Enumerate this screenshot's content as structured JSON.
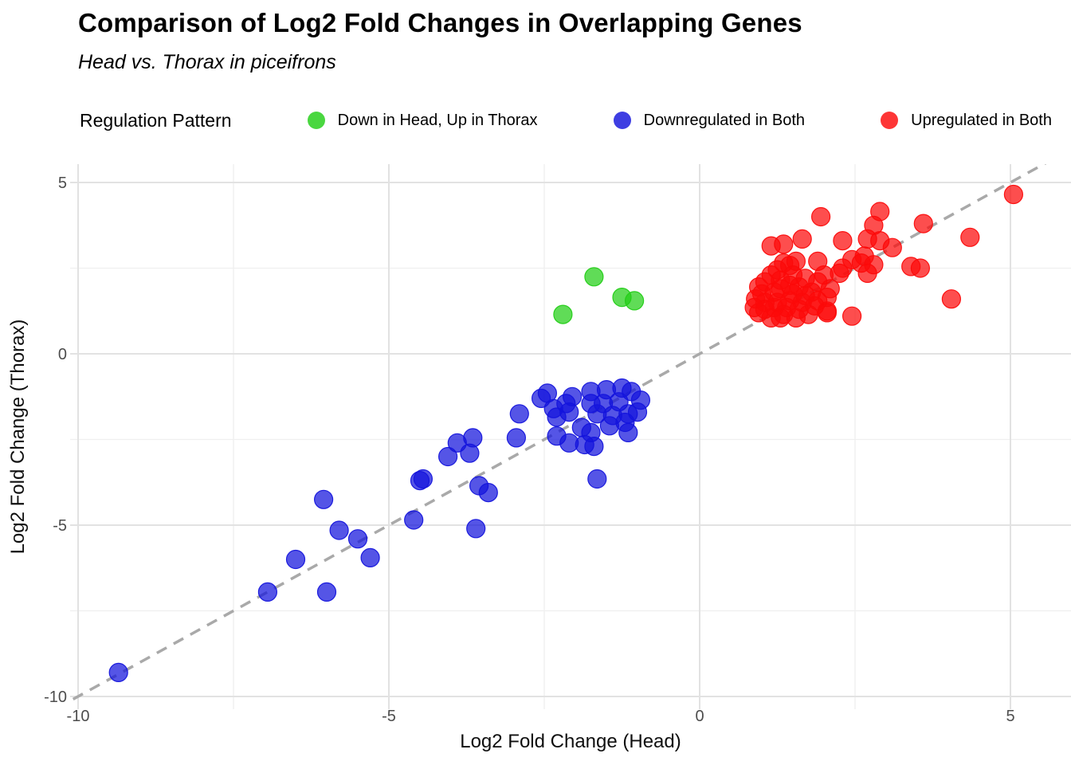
{
  "title": "Comparison of Log2 Fold Changes in Overlapping Genes",
  "subtitle": "Head vs. Thorax in piceifrons",
  "legend": {
    "title": "Regulation Pattern",
    "items": [
      {
        "label": "Down in Head, Up in Thorax",
        "color": "#22CE16"
      },
      {
        "label": "Downregulated in Both",
        "color": "#1414DC"
      },
      {
        "label": "Upregulated in Both",
        "color": "#FC0A0A"
      }
    ]
  },
  "chart_data": {
    "type": "scatter",
    "title": "Comparison of Log2 Fold Changes in Overlapping Genes",
    "subtitle": "Head vs. Thorax in piceifrons",
    "xlabel": "Log2 Fold Change (Head)",
    "ylabel": "Log2 Fold Change (Thorax)",
    "xlim": [
      -10.3,
      5.9
    ],
    "ylim": [
      -10.4,
      5.5
    ],
    "x_ticks": [
      -10,
      -5,
      0,
      5
    ],
    "y_ticks": [
      5,
      0,
      -5,
      -10
    ],
    "x_minor_ticks": [
      -7.5,
      -2.5,
      2.5
    ],
    "y_minor_ticks": [
      2.5,
      -2.5,
      -7.5
    ],
    "grid": "on",
    "legend_position": "top",
    "legend_title": "Regulation Pattern",
    "reference_line": {
      "type": "identity y = x",
      "style": "dashed",
      "color": "#A9A9A9"
    },
    "point_opacity": 0.72,
    "series": [
      {
        "name": "Down in Head, Up in Thorax",
        "color": "#22CE16",
        "points": [
          [
            -1.7,
            2.25
          ],
          [
            -1.25,
            1.65
          ],
          [
            -1.05,
            1.55
          ],
          [
            -2.2,
            1.15
          ]
        ]
      },
      {
        "name": "Downregulated in Both",
        "color": "#1414DC",
        "points": [
          [
            -9.35,
            -9.3
          ],
          [
            -6.95,
            -6.95
          ],
          [
            -6.0,
            -6.95
          ],
          [
            -6.5,
            -6.0
          ],
          [
            -5.3,
            -5.95
          ],
          [
            -5.8,
            -5.15
          ],
          [
            -5.5,
            -5.4
          ],
          [
            -4.6,
            -4.85
          ],
          [
            -6.05,
            -4.25
          ],
          [
            -4.5,
            -3.7
          ],
          [
            -4.45,
            -3.65
          ],
          [
            -3.6,
            -5.1
          ],
          [
            -3.55,
            -3.85
          ],
          [
            -3.4,
            -4.05
          ],
          [
            -4.05,
            -3.0
          ],
          [
            -3.9,
            -2.6
          ],
          [
            -3.65,
            -2.45
          ],
          [
            -3.7,
            -2.9
          ],
          [
            -1.65,
            -3.65
          ],
          [
            -2.9,
            -1.75
          ],
          [
            -2.95,
            -2.45
          ],
          [
            -2.55,
            -1.3
          ],
          [
            -2.45,
            -1.15
          ],
          [
            -2.35,
            -1.6
          ],
          [
            -2.3,
            -1.85
          ],
          [
            -2.15,
            -1.45
          ],
          [
            -2.1,
            -1.7
          ],
          [
            -2.05,
            -1.25
          ],
          [
            -2.3,
            -2.4
          ],
          [
            -2.1,
            -2.6
          ],
          [
            -1.9,
            -2.15
          ],
          [
            -1.75,
            -1.1
          ],
          [
            -1.5,
            -1.05
          ],
          [
            -1.25,
            -1.0
          ],
          [
            -1.1,
            -1.1
          ],
          [
            -1.75,
            -1.45
          ],
          [
            -1.55,
            -1.45
          ],
          [
            -1.3,
            -1.4
          ],
          [
            -0.95,
            -1.35
          ],
          [
            -1.65,
            -1.75
          ],
          [
            -1.4,
            -1.8
          ],
          [
            -1.15,
            -1.75
          ],
          [
            -1.0,
            -1.7
          ],
          [
            -1.45,
            -2.1
          ],
          [
            -1.2,
            -2.0
          ],
          [
            -1.75,
            -2.3
          ],
          [
            -1.15,
            -2.3
          ],
          [
            -1.85,
            -2.65
          ],
          [
            -1.7,
            -2.7
          ]
        ]
      },
      {
        "name": "Upregulated in Both",
        "color": "#FC0A0A",
        "points": [
          [
            5.05,
            4.65
          ],
          [
            2.9,
            4.15
          ],
          [
            1.95,
            4.0
          ],
          [
            2.8,
            3.75
          ],
          [
            3.6,
            3.8
          ],
          [
            4.35,
            3.4
          ],
          [
            1.15,
            3.15
          ],
          [
            1.35,
            3.2
          ],
          [
            1.65,
            3.35
          ],
          [
            2.3,
            3.3
          ],
          [
            2.7,
            3.35
          ],
          [
            2.9,
            3.3
          ],
          [
            3.1,
            3.1
          ],
          [
            2.65,
            2.85
          ],
          [
            2.45,
            2.75
          ],
          [
            2.6,
            2.65
          ],
          [
            2.8,
            2.6
          ],
          [
            3.4,
            2.55
          ],
          [
            3.55,
            2.5
          ],
          [
            2.7,
            2.35
          ],
          [
            1.9,
            2.7
          ],
          [
            1.55,
            2.7
          ],
          [
            1.35,
            2.65
          ],
          [
            1.45,
            2.58
          ],
          [
            0.95,
            1.95
          ],
          [
            1.05,
            2.1
          ],
          [
            1.3,
            2.15
          ],
          [
            1.25,
            2.45
          ],
          [
            1.45,
            2.0
          ],
          [
            1.6,
            1.95
          ],
          [
            1.8,
            1.8
          ],
          [
            2.25,
            2.35
          ],
          [
            2.3,
            2.5
          ],
          [
            0.9,
            1.6
          ],
          [
            1.05,
            1.5
          ],
          [
            1.25,
            1.5
          ],
          [
            1.45,
            1.55
          ],
          [
            1.65,
            1.5
          ],
          [
            2.05,
            1.65
          ],
          [
            0.95,
            1.2
          ],
          [
            1.15,
            1.05
          ],
          [
            1.35,
            1.15
          ],
          [
            1.55,
            1.05
          ],
          [
            1.75,
            1.15
          ],
          [
            2.05,
            1.25
          ],
          [
            1.2,
            1.35
          ],
          [
            1.4,
            1.35
          ],
          [
            1.6,
            1.3
          ],
          [
            1.85,
            1.4
          ],
          [
            1.0,
            1.75
          ],
          [
            1.2,
            1.8
          ],
          [
            1.5,
            1.75
          ],
          [
            1.7,
            1.7
          ],
          [
            1.9,
            1.55
          ],
          [
            2.1,
            1.9
          ],
          [
            1.15,
            2.3
          ],
          [
            1.5,
            2.3
          ],
          [
            1.7,
            2.2
          ],
          [
            1.9,
            2.1
          ],
          [
            2.0,
            2.3
          ],
          [
            1.3,
            1.9
          ],
          [
            0.88,
            1.35
          ],
          [
            1.05,
            1.3
          ],
          [
            1.3,
            1.05
          ],
          [
            2.45,
            1.1
          ],
          [
            2.05,
            1.2
          ],
          [
            4.05,
            1.6
          ]
        ]
      }
    ]
  }
}
